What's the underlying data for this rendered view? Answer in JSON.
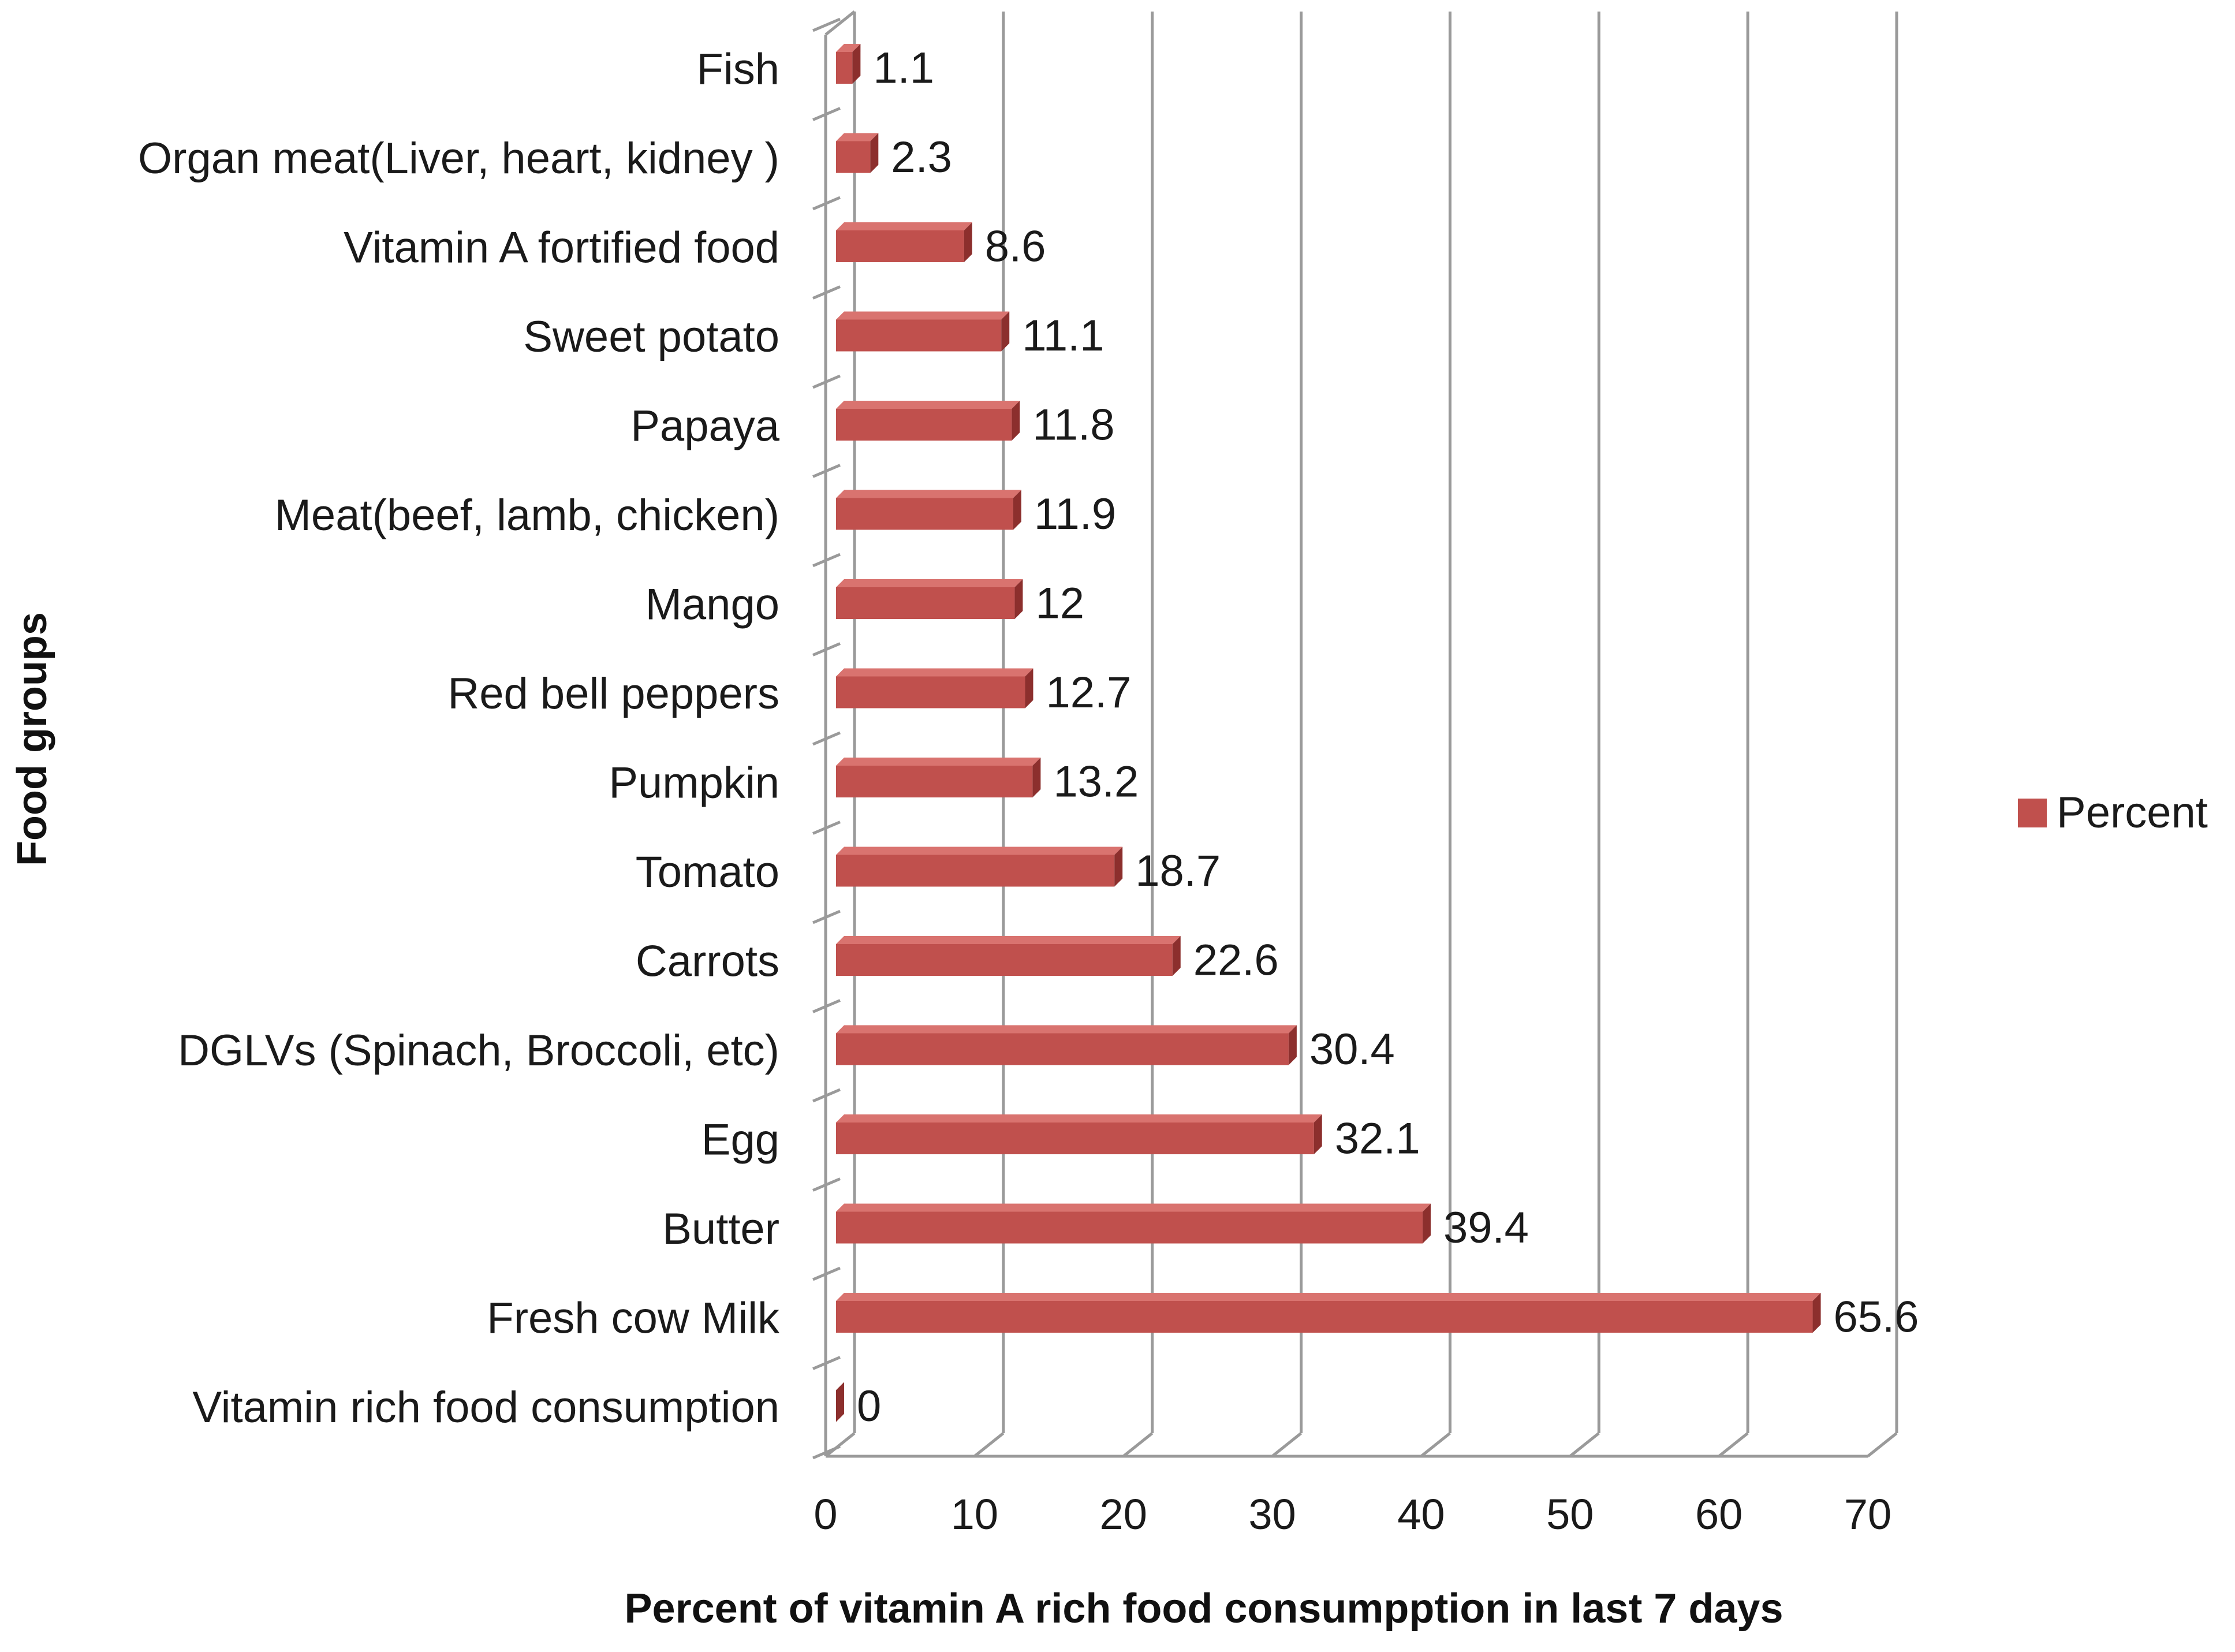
{
  "chart_data": {
    "type": "bar",
    "orientation": "horizontal",
    "style": "3d",
    "categories": [
      "Fish",
      "Organ meat(Liver, heart, kidney )",
      "Vitamin A fortified food",
      "Sweet potato",
      "Papaya",
      "Meat(beef, lamb, chicken)",
      "Mango",
      "Red bell peppers",
      "Pumpkin",
      "Tomato",
      "Carrots",
      "DGLVs (Spinach, Broccoli, etc)",
      "Egg",
      "Butter",
      "Fresh cow Milk",
      "Vitamin rich food  consumption"
    ],
    "series": [
      {
        "name": "Percent",
        "values": [
          1.1,
          2.3,
          8.6,
          11.1,
          11.8,
          11.9,
          12,
          12.7,
          13.2,
          18.7,
          22.6,
          30.4,
          32.1,
          39.4,
          65.6,
          0
        ],
        "labels": [
          "1.1",
          "2.3",
          "8.6",
          "11.1",
          "11.8",
          "11.9",
          "12",
          "12.7",
          "13.2",
          "18.7",
          "22.6",
          "30.4",
          "32.1",
          "39.4",
          "65.6",
          "0"
        ]
      }
    ],
    "title": "",
    "xlabel": "Percent of vitamin A rich food consumpption in last 7 days",
    "ylabel": "Food groups",
    "xlim": [
      0,
      70
    ],
    "xticks": [
      0,
      10,
      20,
      30,
      40,
      50,
      60,
      70
    ],
    "grid": true,
    "legend": {
      "position": "right",
      "entries": [
        "Percent"
      ]
    },
    "colors": {
      "bar_front": "#c0504d",
      "bar_top": "#d9736f",
      "bar_side": "#8c2f2d",
      "gridline": "#9a9a9a"
    }
  }
}
